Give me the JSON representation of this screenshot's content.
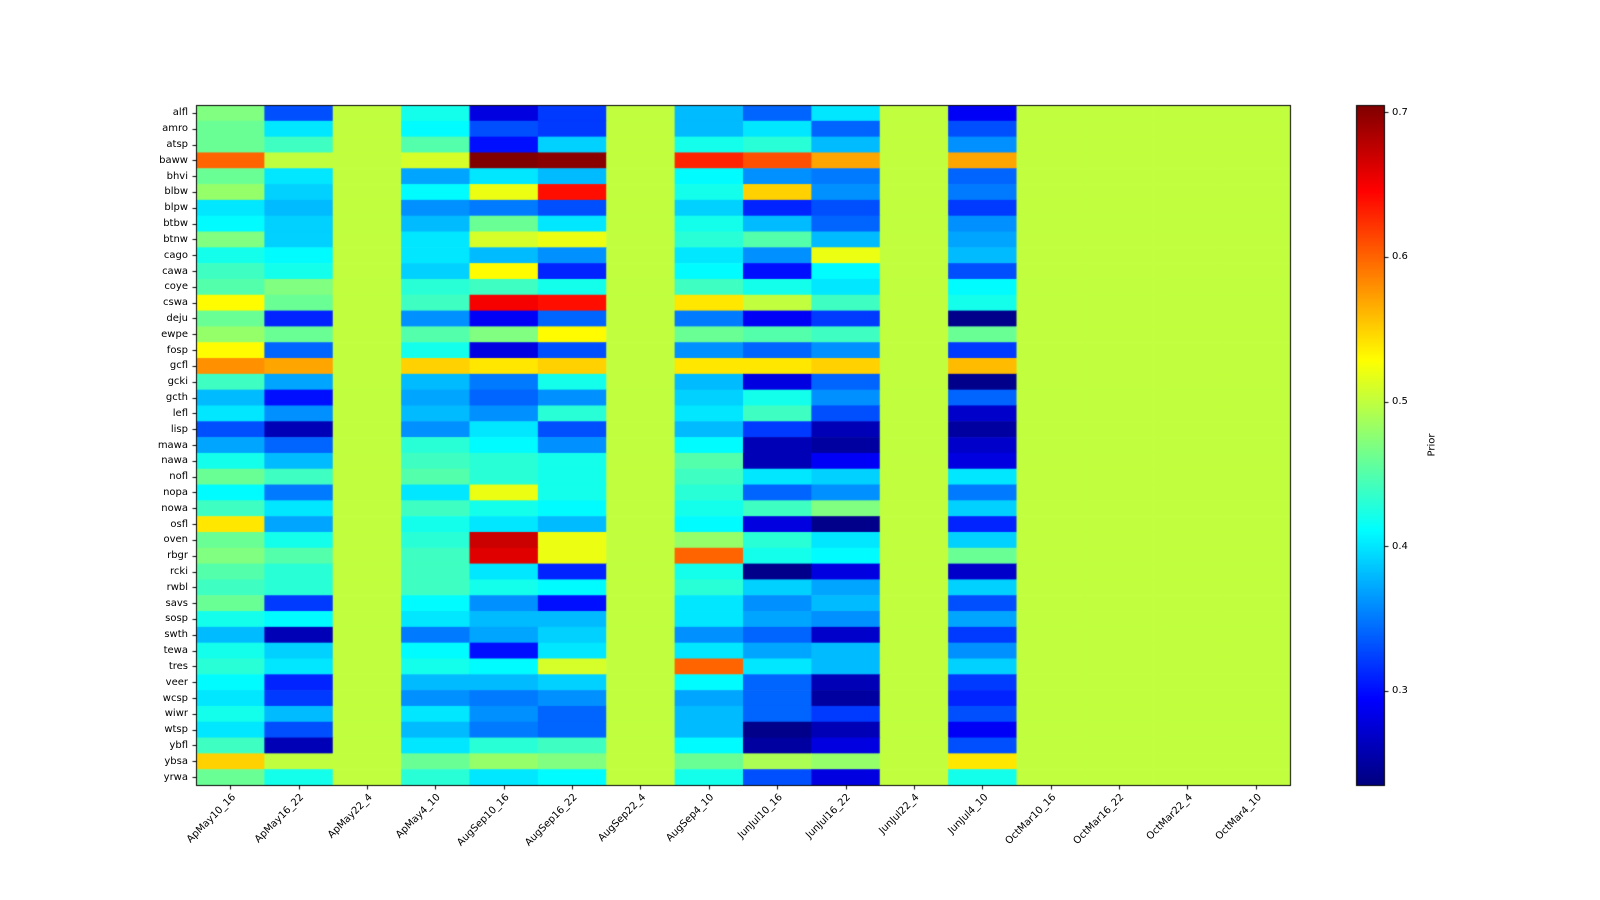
{
  "chart_data": {
    "type": "heatmap",
    "title": "",
    "colormap": "jet",
    "vmin": 0.235,
    "vmax": 0.705,
    "colorbar_label": "Prior",
    "colorbar_ticks": [
      0.7,
      0.6,
      0.5,
      0.4,
      0.3
    ],
    "grid": false,
    "columns": [
      "ApMay10_16",
      "ApMay16_22",
      "ApMay22_4",
      "ApMay4_10",
      "AugSep10_16",
      "AugSep16_22",
      "AugSep22_4",
      "AugSep4_10",
      "JunJul10_16",
      "JunJul16_22",
      "JunJul22_4",
      "JunJul4_10",
      "OctMar10_16",
      "OctMar16_22",
      "OctMar22_4",
      "OctMar4_10"
    ],
    "rows": [
      "alfl",
      "amro",
      "atsp",
      "baww",
      "bhvi",
      "blbw",
      "blpw",
      "btbw",
      "btnw",
      "cago",
      "cawa",
      "coye",
      "cswa",
      "deju",
      "ewpe",
      "fosp",
      "gcfl",
      "gcki",
      "gcth",
      "lefl",
      "lisp",
      "mawa",
      "nawa",
      "nofl",
      "nopa",
      "nowa",
      "osfl",
      "oven",
      "rbgr",
      "rcki",
      "rwbl",
      "savs",
      "sosp",
      "swth",
      "tewa",
      "tres",
      "veer",
      "wcsp",
      "wiwr",
      "wtsp",
      "ybfl",
      "ybsa",
      "yrwa"
    ],
    "values": [
      [
        0.47,
        0.33,
        0.5,
        0.42,
        0.28,
        0.32,
        0.5,
        0.38,
        0.34,
        0.4,
        0.5,
        0.29,
        0.5,
        0.5,
        0.5,
        0.5
      ],
      [
        0.46,
        0.4,
        0.5,
        0.41,
        0.33,
        0.32,
        0.5,
        0.38,
        0.4,
        0.34,
        0.5,
        0.33,
        0.5,
        0.5,
        0.5,
        0.5
      ],
      [
        0.46,
        0.44,
        0.5,
        0.45,
        0.3,
        0.39,
        0.5,
        0.42,
        0.43,
        0.38,
        0.5,
        0.36,
        0.5,
        0.5,
        0.5,
        0.5
      ],
      [
        0.6,
        0.5,
        0.5,
        0.51,
        0.705,
        0.7,
        0.5,
        0.63,
        0.61,
        0.57,
        0.5,
        0.57,
        0.5,
        0.5,
        0.5,
        0.5
      ],
      [
        0.46,
        0.4,
        0.5,
        0.37,
        0.4,
        0.38,
        0.5,
        0.41,
        0.36,
        0.35,
        0.5,
        0.34,
        0.5,
        0.5,
        0.5,
        0.5
      ],
      [
        0.48,
        0.39,
        0.5,
        0.41,
        0.52,
        0.64,
        0.5,
        0.42,
        0.55,
        0.36,
        0.5,
        0.35,
        0.5,
        0.5,
        0.5,
        0.5
      ],
      [
        0.4,
        0.38,
        0.5,
        0.36,
        0.35,
        0.33,
        0.5,
        0.39,
        0.31,
        0.33,
        0.5,
        0.32,
        0.5,
        0.5,
        0.5,
        0.5
      ],
      [
        0.41,
        0.39,
        0.5,
        0.38,
        0.46,
        0.4,
        0.5,
        0.42,
        0.38,
        0.34,
        0.5,
        0.36,
        0.5,
        0.5,
        0.5,
        0.5
      ],
      [
        0.47,
        0.39,
        0.5,
        0.4,
        0.51,
        0.52,
        0.5,
        0.43,
        0.45,
        0.38,
        0.5,
        0.37,
        0.5,
        0.5,
        0.5,
        0.5
      ],
      [
        0.42,
        0.41,
        0.5,
        0.4,
        0.38,
        0.36,
        0.5,
        0.4,
        0.36,
        0.52,
        0.5,
        0.38,
        0.5,
        0.5,
        0.5,
        0.5
      ],
      [
        0.44,
        0.42,
        0.5,
        0.39,
        0.53,
        0.31,
        0.5,
        0.41,
        0.3,
        0.41,
        0.5,
        0.33,
        0.5,
        0.5,
        0.5,
        0.5
      ],
      [
        0.45,
        0.47,
        0.5,
        0.43,
        0.44,
        0.42,
        0.5,
        0.44,
        0.42,
        0.4,
        0.5,
        0.41,
        0.5,
        0.5,
        0.5,
        0.5
      ],
      [
        0.53,
        0.46,
        0.5,
        0.44,
        0.65,
        0.64,
        0.5,
        0.54,
        0.5,
        0.44,
        0.5,
        0.42,
        0.5,
        0.5,
        0.5,
        0.5
      ],
      [
        0.46,
        0.31,
        0.5,
        0.36,
        0.29,
        0.34,
        0.5,
        0.35,
        0.29,
        0.32,
        0.5,
        0.24,
        0.5,
        0.5,
        0.5,
        0.5
      ],
      [
        0.48,
        0.46,
        0.5,
        0.45,
        0.47,
        0.53,
        0.5,
        0.46,
        0.45,
        0.44,
        0.5,
        0.46,
        0.5,
        0.5,
        0.5,
        0.5
      ],
      [
        0.53,
        0.34,
        0.5,
        0.42,
        0.28,
        0.33,
        0.5,
        0.36,
        0.34,
        0.36,
        0.5,
        0.32,
        0.5,
        0.5,
        0.5,
        0.5
      ],
      [
        0.58,
        0.57,
        0.5,
        0.55,
        0.54,
        0.55,
        0.5,
        0.54,
        0.54,
        0.55,
        0.5,
        0.56,
        0.5,
        0.5,
        0.5,
        0.5
      ],
      [
        0.44,
        0.37,
        0.5,
        0.38,
        0.35,
        0.42,
        0.5,
        0.38,
        0.28,
        0.34,
        0.5,
        0.24,
        0.5,
        0.5,
        0.5,
        0.5
      ],
      [
        0.38,
        0.3,
        0.5,
        0.37,
        0.34,
        0.36,
        0.5,
        0.39,
        0.42,
        0.36,
        0.5,
        0.34,
        0.5,
        0.5,
        0.5,
        0.5
      ],
      [
        0.4,
        0.36,
        0.5,
        0.38,
        0.36,
        0.43,
        0.5,
        0.4,
        0.44,
        0.33,
        0.5,
        0.27,
        0.5,
        0.5,
        0.5,
        0.5
      ],
      [
        0.33,
        0.26,
        0.5,
        0.36,
        0.4,
        0.33,
        0.5,
        0.38,
        0.32,
        0.26,
        0.5,
        0.25,
        0.5,
        0.5,
        0.5,
        0.5
      ],
      [
        0.37,
        0.34,
        0.5,
        0.43,
        0.41,
        0.36,
        0.5,
        0.41,
        0.26,
        0.25,
        0.5,
        0.27,
        0.5,
        0.5,
        0.5,
        0.5
      ],
      [
        0.42,
        0.38,
        0.5,
        0.44,
        0.43,
        0.42,
        0.5,
        0.45,
        0.26,
        0.29,
        0.5,
        0.28,
        0.5,
        0.5,
        0.5,
        0.5
      ],
      [
        0.46,
        0.44,
        0.5,
        0.45,
        0.43,
        0.42,
        0.5,
        0.44,
        0.4,
        0.39,
        0.5,
        0.4,
        0.5,
        0.5,
        0.5,
        0.5
      ],
      [
        0.41,
        0.35,
        0.5,
        0.4,
        0.52,
        0.42,
        0.5,
        0.43,
        0.34,
        0.36,
        0.5,
        0.35,
        0.5,
        0.5,
        0.5,
        0.5
      ],
      [
        0.44,
        0.4,
        0.5,
        0.44,
        0.42,
        0.41,
        0.5,
        0.42,
        0.44,
        0.47,
        0.5,
        0.39,
        0.5,
        0.5,
        0.5,
        0.5
      ],
      [
        0.54,
        0.37,
        0.5,
        0.42,
        0.4,
        0.38,
        0.5,
        0.41,
        0.28,
        0.24,
        0.5,
        0.31,
        0.5,
        0.5,
        0.5,
        0.5
      ],
      [
        0.46,
        0.42,
        0.5,
        0.43,
        0.67,
        0.52,
        0.5,
        0.48,
        0.43,
        0.4,
        0.5,
        0.39,
        0.5,
        0.5,
        0.5,
        0.5
      ],
      [
        0.47,
        0.45,
        0.5,
        0.44,
        0.66,
        0.52,
        0.5,
        0.6,
        0.42,
        0.41,
        0.5,
        0.46,
        0.5,
        0.5,
        0.5,
        0.5
      ],
      [
        0.45,
        0.43,
        0.5,
        0.44,
        0.4,
        0.31,
        0.5,
        0.42,
        0.24,
        0.28,
        0.5,
        0.27,
        0.5,
        0.5,
        0.5,
        0.5
      ],
      [
        0.44,
        0.43,
        0.5,
        0.44,
        0.42,
        0.41,
        0.5,
        0.43,
        0.39,
        0.37,
        0.5,
        0.39,
        0.5,
        0.5,
        0.5,
        0.5
      ],
      [
        0.46,
        0.32,
        0.5,
        0.41,
        0.36,
        0.3,
        0.5,
        0.4,
        0.36,
        0.38,
        0.5,
        0.33,
        0.5,
        0.5,
        0.5,
        0.5
      ],
      [
        0.42,
        0.41,
        0.5,
        0.4,
        0.38,
        0.38,
        0.5,
        0.4,
        0.37,
        0.36,
        0.5,
        0.37,
        0.5,
        0.5,
        0.5,
        0.5
      ],
      [
        0.38,
        0.26,
        0.5,
        0.35,
        0.37,
        0.39,
        0.5,
        0.36,
        0.34,
        0.27,
        0.5,
        0.32,
        0.5,
        0.5,
        0.5,
        0.5
      ],
      [
        0.42,
        0.39,
        0.5,
        0.41,
        0.3,
        0.4,
        0.5,
        0.4,
        0.37,
        0.38,
        0.5,
        0.36,
        0.5,
        0.5,
        0.5,
        0.5
      ],
      [
        0.43,
        0.4,
        0.5,
        0.42,
        0.41,
        0.51,
        0.5,
        0.6,
        0.4,
        0.38,
        0.5,
        0.39,
        0.5,
        0.5,
        0.5,
        0.5
      ],
      [
        0.41,
        0.31,
        0.5,
        0.38,
        0.38,
        0.39,
        0.5,
        0.41,
        0.34,
        0.26,
        0.5,
        0.32,
        0.5,
        0.5,
        0.5,
        0.5
      ],
      [
        0.4,
        0.32,
        0.5,
        0.36,
        0.35,
        0.36,
        0.5,
        0.37,
        0.34,
        0.25,
        0.5,
        0.31,
        0.5,
        0.5,
        0.5,
        0.5
      ],
      [
        0.42,
        0.38,
        0.5,
        0.4,
        0.36,
        0.34,
        0.5,
        0.38,
        0.34,
        0.32,
        0.5,
        0.33,
        0.5,
        0.5,
        0.5,
        0.5
      ],
      [
        0.4,
        0.33,
        0.5,
        0.38,
        0.35,
        0.34,
        0.5,
        0.38,
        0.24,
        0.26,
        0.5,
        0.29,
        0.5,
        0.5,
        0.5,
        0.5
      ],
      [
        0.44,
        0.26,
        0.5,
        0.4,
        0.43,
        0.44,
        0.5,
        0.41,
        0.25,
        0.28,
        0.5,
        0.33,
        0.5,
        0.5,
        0.5,
        0.5
      ],
      [
        0.55,
        0.5,
        0.5,
        0.46,
        0.48,
        0.47,
        0.5,
        0.46,
        0.49,
        0.48,
        0.5,
        0.54,
        0.5,
        0.5,
        0.5,
        0.5
      ],
      [
        0.46,
        0.42,
        0.5,
        0.43,
        0.4,
        0.41,
        0.5,
        0.42,
        0.33,
        0.28,
        0.5,
        0.42,
        0.5,
        0.5,
        0.5,
        0.5
      ]
    ]
  }
}
